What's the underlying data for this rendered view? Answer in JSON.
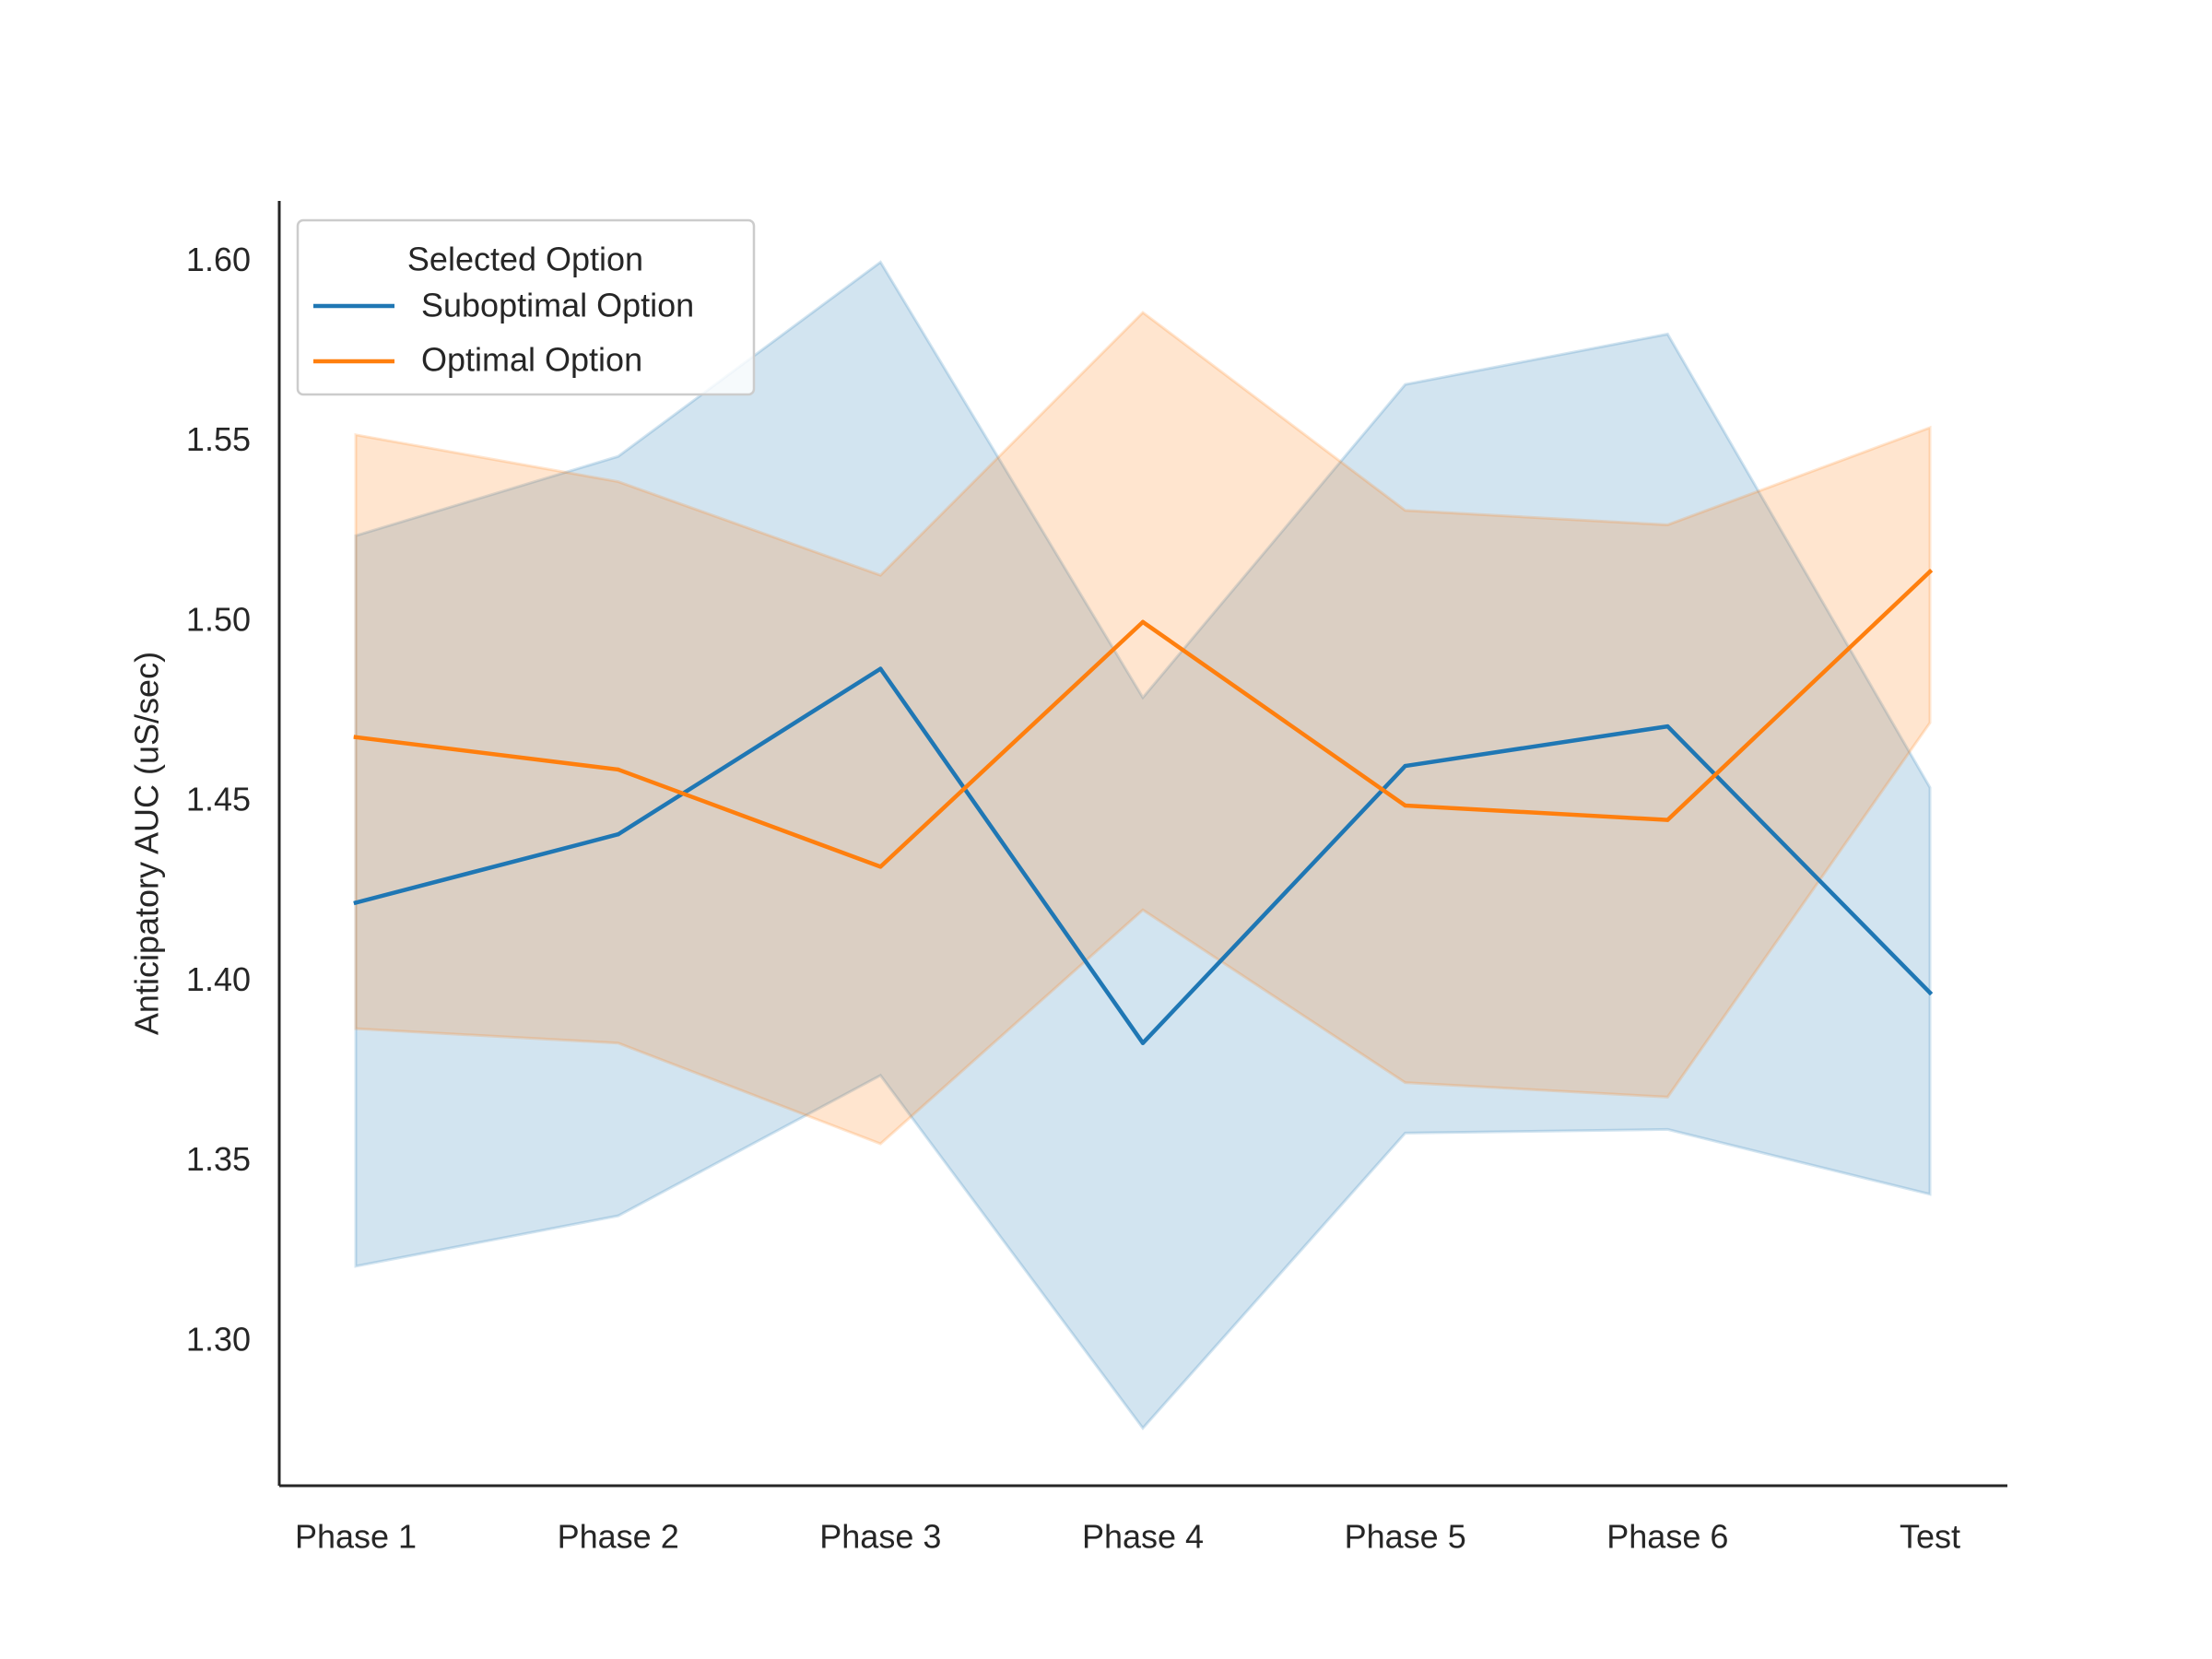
{
  "chart_data": {
    "type": "line",
    "categories": [
      "Phase 1",
      "Phase 2",
      "Phase 3",
      "Phase 4",
      "Phase 5",
      "Phase 6",
      "Test"
    ],
    "ylabel": "Anticipatory AUC (uS/sec)",
    "xlabel": "",
    "ylim": [
      1.26,
      1.617
    ],
    "yticks": [
      "1.30",
      "1.35",
      "1.40",
      "1.45",
      "1.50",
      "1.55",
      "1.60"
    ],
    "grid": false,
    "legend": {
      "title": "Selected Option",
      "placement": "top-left"
    },
    "series": [
      {
        "name": "Suboptimal Option",
        "color": "#1f77b4",
        "values": [
          1.422,
          1.441,
          1.487,
          1.383,
          1.46,
          1.471,
          1.397
        ],
        "ci_low": [
          1.321,
          1.335,
          1.374,
          1.276,
          1.358,
          1.359,
          1.341
        ],
        "ci_high": [
          1.524,
          1.546,
          1.6,
          1.479,
          1.566,
          1.58,
          1.454
        ]
      },
      {
        "name": "Optimal Option",
        "color": "#ff7f0e",
        "values": [
          1.468,
          1.459,
          1.432,
          1.5,
          1.449,
          1.445,
          1.514
        ],
        "ci_low": [
          1.387,
          1.383,
          1.355,
          1.42,
          1.372,
          1.368,
          1.472
        ],
        "ci_high": [
          1.552,
          1.539,
          1.513,
          1.586,
          1.531,
          1.527,
          1.554
        ]
      }
    ]
  }
}
